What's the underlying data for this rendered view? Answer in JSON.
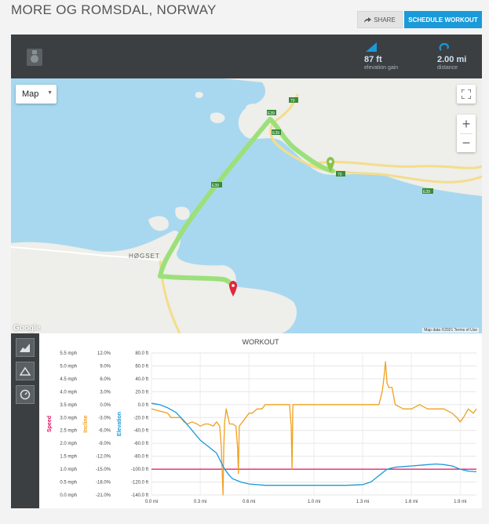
{
  "page": {
    "title": "MORE OG ROMSDAL, NORWAY",
    "share_label": "SHARE",
    "schedule_label": "SCHEDULE WORKOUT"
  },
  "stats": {
    "elevation": {
      "value": "87 ft",
      "label": "elevation gain",
      "icon": "elevation-gain-icon"
    },
    "distance": {
      "value": "2.00 mi",
      "label": "distance",
      "icon": "distance-icon"
    }
  },
  "map": {
    "type_label": "Map",
    "zoom_in": "+",
    "zoom_out": "−",
    "place_label": "HØGSET",
    "road_labels": [
      "70",
      "E39",
      "E39",
      "E39",
      "70",
      "E39",
      "70"
    ],
    "legal": "Map data ©2021   Terms of Use",
    "provider": "Google",
    "colors": {
      "water": "#a8d8ef",
      "land": "#eeeeea",
      "route": "#9be07a",
      "road": "#f4dd8b",
      "start": "#8bc34a",
      "finish": "#e0263d"
    }
  },
  "chart_data": {
    "type": "line",
    "title": "WORKOUT",
    "x_ticks": [
      "0.0 mi",
      "0.3 mi",
      "0.6 mi",
      "1.0 mi",
      "1.3 mi",
      "1.6 mi",
      "1.9 mi"
    ],
    "x_tick_values": [
      0.0,
      0.3,
      0.6,
      1.0,
      1.3,
      1.6,
      1.9
    ],
    "xlim": [
      0,
      2.0
    ],
    "axes": {
      "speed": {
        "label": "Speed",
        "color": "#e0115f",
        "ticks": [
          "5.5 mph",
          "5.0 mph",
          "4.5 mph",
          "4.0 mph",
          "3.5 mph",
          "3.0 mph",
          "2.5 mph",
          "2.0 mph",
          "1.5 mph",
          "1.0 mph",
          "0.5 mph",
          "0.0 mph"
        ],
        "ylim": [
          0,
          5.5
        ]
      },
      "incline": {
        "label": "Incline",
        "color": "#f0a020",
        "ticks": [
          "12.0%",
          "9.0%",
          "6.0%",
          "3.0%",
          "0.0%",
          "-3.0%",
          "-6.0%",
          "-9.0%",
          "-12.0%",
          "-15.0%",
          "-18.0%",
          "-21.0%"
        ],
        "ylim": [
          -21,
          12
        ]
      },
      "elevation": {
        "label": "Elevation",
        "color": "#1a9ad9",
        "ticks": [
          "80.0 ft",
          "60.0 ft",
          "40.0 ft",
          "20.0 ft",
          "0.0 ft",
          "-20.0 ft",
          "-40.0 ft",
          "-60.0 ft",
          "-80.0 ft",
          "-100.0 ft",
          "-120.0 ft",
          "-140.0 ft"
        ],
        "ylim": [
          -140,
          80
        ]
      }
    },
    "series": [
      {
        "name": "Speed",
        "axis": "speed",
        "color": "#e0115f",
        "x": [
          0,
          2.0
        ],
        "y": [
          1.0,
          1.0
        ]
      },
      {
        "name": "Incline",
        "axis": "incline",
        "color": "#f0a020",
        "x": [
          0,
          0.05,
          0.1,
          0.12,
          0.18,
          0.2,
          0.22,
          0.25,
          0.28,
          0.3,
          0.33,
          0.35,
          0.38,
          0.4,
          0.42,
          0.43,
          0.44,
          0.445,
          0.45,
          0.46,
          0.48,
          0.5,
          0.52,
          0.53,
          0.535,
          0.54,
          0.55,
          0.58,
          0.6,
          0.62,
          0.65,
          0.68,
          0.7,
          0.75,
          0.8,
          0.85,
          0.86,
          0.865,
          0.87,
          0.88,
          0.9,
          1.0,
          1.1,
          1.2,
          1.3,
          1.4,
          1.42,
          1.43,
          1.44,
          1.45,
          1.46,
          1.48,
          1.5,
          1.55,
          1.6,
          1.65,
          1.7,
          1.75,
          1.8,
          1.85,
          1.88,
          1.9,
          1.92,
          1.95,
          1.98,
          2.0
        ],
        "y": [
          -1,
          -1.5,
          -2,
          -3,
          -3,
          -4,
          -4.5,
          -4,
          -4.5,
          -5,
          -4.5,
          -4.5,
          -5,
          -4,
          -5,
          -10,
          -21,
          -10,
          -4,
          -1,
          -4.5,
          -4.5,
          -5,
          -10,
          -16,
          -5,
          -4.5,
          -3,
          -2,
          -2,
          -1,
          -1,
          0,
          0,
          0,
          0,
          -5,
          -15,
          0,
          0,
          0,
          0,
          0,
          0,
          0,
          0,
          3,
          6,
          10,
          5,
          4,
          4,
          0,
          -1,
          -1,
          0,
          -1,
          -1,
          -1,
          -2,
          -3,
          -4,
          -3,
          -1,
          -2,
          -1
        ]
      },
      {
        "name": "Elevation",
        "axis": "elevation",
        "color": "#1a9ad9",
        "x": [
          0,
          0.05,
          0.1,
          0.15,
          0.2,
          0.25,
          0.3,
          0.35,
          0.4,
          0.43,
          0.45,
          0.48,
          0.5,
          0.55,
          0.6,
          0.7,
          0.8,
          0.9,
          1.0,
          1.1,
          1.2,
          1.3,
          1.35,
          1.4,
          1.45,
          1.5,
          1.55,
          1.6,
          1.65,
          1.7,
          1.75,
          1.8,
          1.85,
          1.9,
          1.95,
          2.0
        ],
        "y": [
          2,
          0,
          -5,
          -12,
          -25,
          -40,
          -55,
          -65,
          -75,
          -90,
          -100,
          -110,
          -115,
          -120,
          -123,
          -125,
          -125,
          -125,
          -125,
          -125,
          -125,
          -124,
          -120,
          -110,
          -100,
          -97,
          -96,
          -95,
          -94,
          -93,
          -92,
          -93,
          -95,
          -100,
          -103,
          -104
        ]
      }
    ]
  }
}
